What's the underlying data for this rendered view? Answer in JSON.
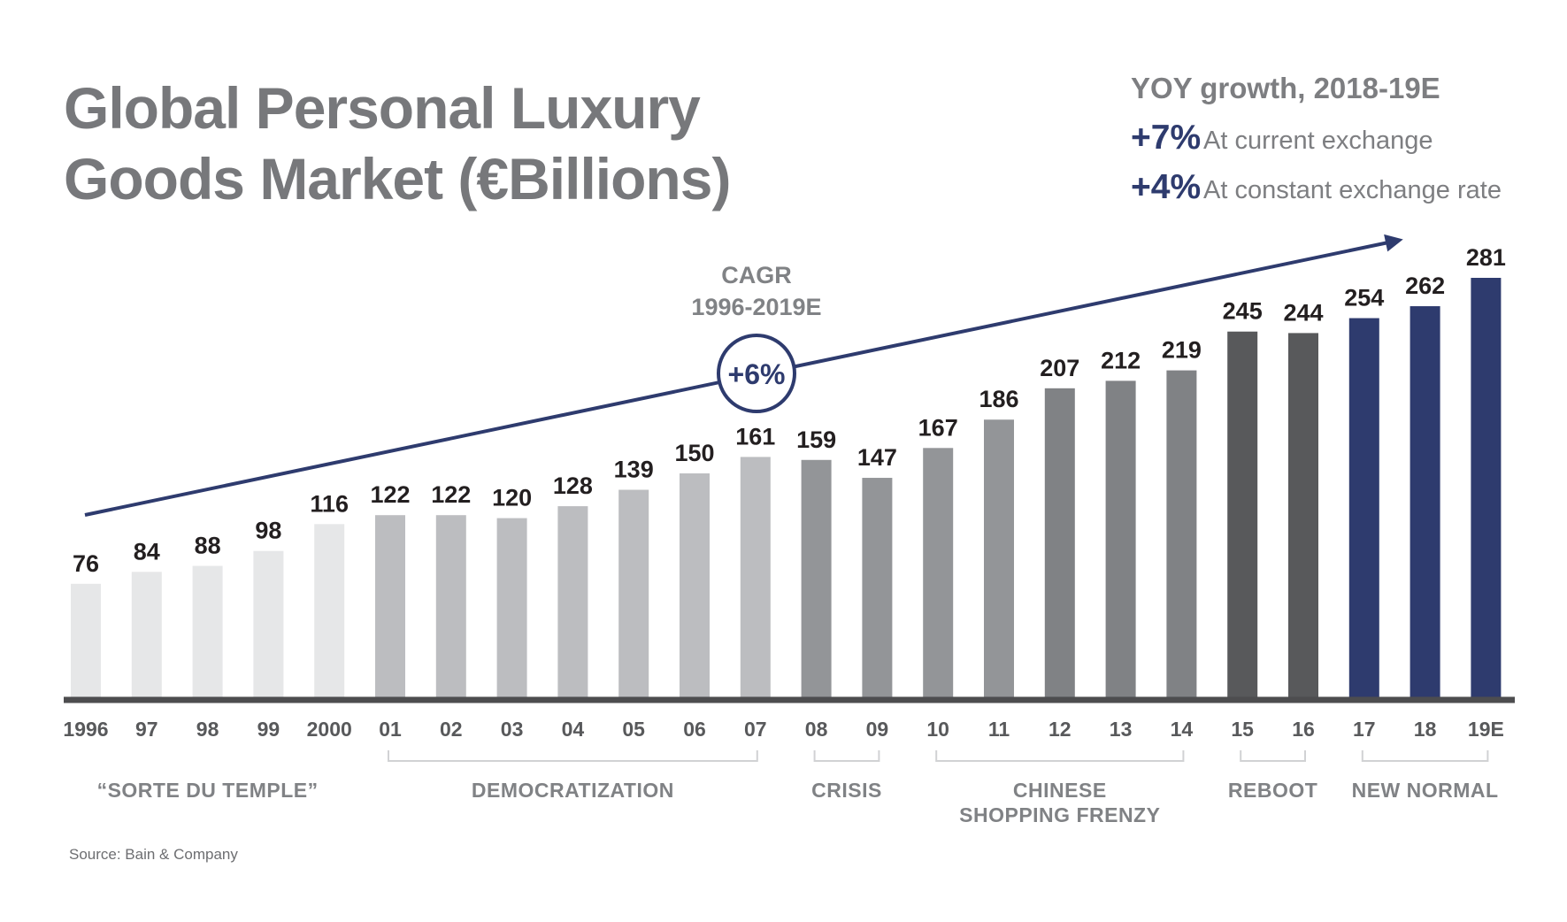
{
  "title_lines": [
    "Global Personal Luxury",
    "Goods Market (€Billions)"
  ],
  "yoy": {
    "heading": "YOY growth, 2018-19E",
    "rows": [
      {
        "value": "+7%",
        "label": "At current exchange"
      },
      {
        "value": "+4%",
        "label": "At constant exchange rate"
      }
    ]
  },
  "cagr": {
    "label_line1": "CAGR",
    "label_line2": "1996-2019E",
    "value": "+6%"
  },
  "source": "Source: Bain & Company",
  "colors": {
    "sorte": "#e6e7e8",
    "democratization": "#bcbdc0",
    "crisis": "#939598",
    "frenzy": "#939598",
    "reboot": "#58595b",
    "new_normal": "#2e3b6e",
    "accent": "#2e3b6e",
    "axis": "#4d4d4f"
  },
  "chart_data": {
    "type": "bar",
    "title": "Global Personal Luxury Goods Market (€Billions)",
    "xlabel": "",
    "ylabel": "€Billions",
    "ylim": [
      0,
      281
    ],
    "categories": [
      "1996",
      "97",
      "98",
      "99",
      "2000",
      "01",
      "02",
      "03",
      "04",
      "05",
      "06",
      "07",
      "08",
      "09",
      "10",
      "11",
      "12",
      "13",
      "14",
      "15",
      "16",
      "17",
      "18",
      "19E"
    ],
    "values": [
      76,
      84,
      88,
      98,
      116,
      122,
      122,
      120,
      128,
      139,
      150,
      161,
      159,
      147,
      167,
      186,
      207,
      212,
      219,
      245,
      244,
      254,
      262,
      281
    ],
    "phases": [
      {
        "label": "“SORTE DU TEMPLE”",
        "start": 0,
        "end": 4,
        "color_key": "sorte",
        "bracket": false
      },
      {
        "label": "DEMOCRATIZATION",
        "start": 5,
        "end": 11,
        "color_key": "democratization",
        "bracket": true
      },
      {
        "label": "CRISIS",
        "start": 12,
        "end": 13,
        "color_key": "crisis",
        "bracket": true
      },
      {
        "label": "CHINESE\nSHOPPING FRENZY",
        "start": 14,
        "end": 18,
        "color_key": "frenzy",
        "bracket": true
      },
      {
        "label": "REBOOT",
        "start": 19,
        "end": 20,
        "color_key": "reboot",
        "bracket": true
      },
      {
        "label": "NEW NORMAL",
        "start": 21,
        "end": 23,
        "color_key": "new_normal",
        "bracket": true
      }
    ],
    "frenzy_shades": [
      "#939598",
      "#939598",
      "#808285",
      "#808285",
      "#808285"
    ]
  }
}
